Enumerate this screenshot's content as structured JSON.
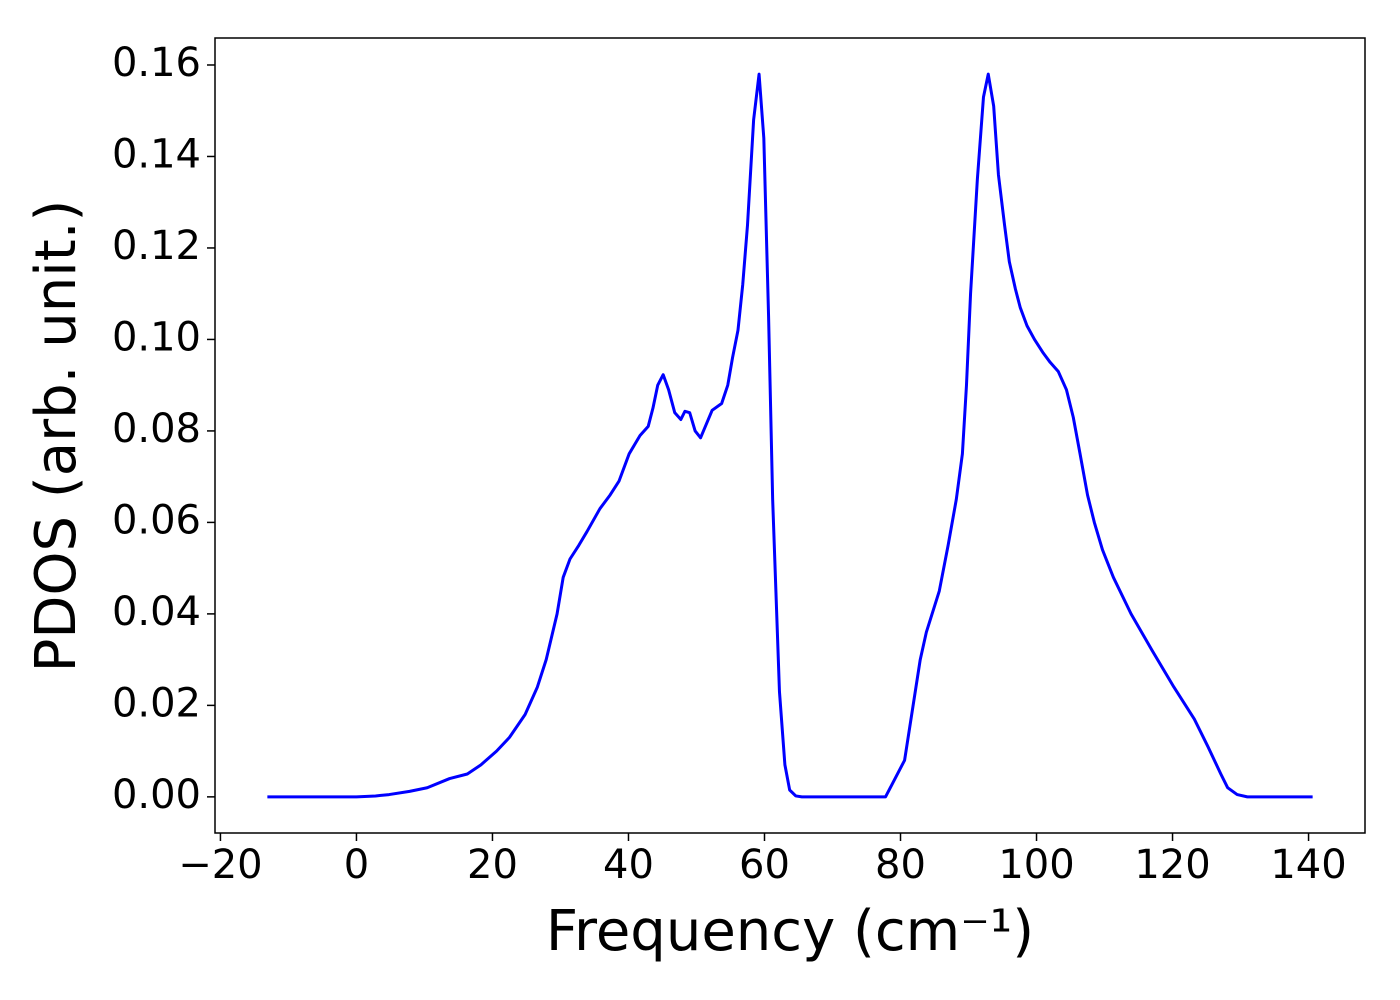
{
  "chart_data": {
    "type": "line",
    "xlabel": "Frequency (cm⁻¹)",
    "ylabel": "PDOS (arb. unit.)",
    "color": "#0000ff",
    "grid": false,
    "xlim": [
      -20.8,
      148.3
    ],
    "ylim": [
      -0.0079,
      0.1659
    ],
    "xticks": [
      {
        "value": -20,
        "label": "−20"
      },
      0,
      20,
      40,
      60,
      80,
      100,
      120,
      140
    ],
    "yticks": [
      {
        "value": 0,
        "label": "0.00"
      },
      {
        "value": 0.02,
        "label": "0.02"
      },
      {
        "value": 0.04,
        "label": "0.04"
      },
      {
        "value": 0.06,
        "label": "0.06"
      },
      {
        "value": 0.08,
        "label": "0.08"
      },
      {
        "value": 0.1,
        "label": "0.10"
      },
      {
        "value": 0.12,
        "label": "0.12"
      },
      {
        "value": 0.14,
        "label": "0.14"
      },
      {
        "value": 0.16,
        "label": "0.16"
      }
    ],
    "x": [
      -13.1,
      0,
      2.8,
      4.8,
      7.8,
      10.4,
      13.7,
      16.3,
      18.3,
      20.6,
      22.5,
      24.8,
      26.6,
      27.9,
      29.5,
      30.4,
      31.4,
      32.7,
      33.9,
      35.8,
      37.3,
      38.6,
      40.1,
      41.7,
      42.9,
      43.6,
      44.3,
      45.1,
      45.9,
      46.8,
      47.7,
      48.3,
      49,
      49.8,
      50.6,
      52.3,
      53.7,
      54.6,
      55.3,
      56.1,
      56.8,
      57.5,
      58.4,
      59.2,
      59.9,
      60.6,
      61.2,
      62.2,
      63,
      63.7,
      64.6,
      65.5,
      77.8,
      80.6,
      82.9,
      83.8,
      85.7,
      87,
      88.2,
      89.1,
      89.7,
      90.3,
      91.3,
      92.2,
      92.9,
      93.7,
      94.4,
      95.3,
      96,
      96.9,
      97.6,
      98.6,
      99.7,
      101,
      102,
      103.2,
      104.4,
      105.4,
      106.4,
      107.5,
      108.5,
      109.7,
      111.3,
      113.9,
      117,
      120.2,
      123.2,
      125.2,
      127.1,
      128.1,
      129.5,
      131,
      140.6
    ],
    "values": [
      0,
      0,
      0.0002,
      0.0005,
      0.0012,
      0.002,
      0.004,
      0.005,
      0.007,
      0.01,
      0.013,
      0.018,
      0.024,
      0.03,
      0.04,
      0.048,
      0.052,
      0.055,
      0.058,
      0.063,
      0.066,
      0.069,
      0.075,
      0.079,
      0.081,
      0.085,
      0.09,
      0.0923,
      0.089,
      0.084,
      0.0825,
      0.0843,
      0.084,
      0.08,
      0.0785,
      0.0845,
      0.086,
      0.09,
      0.096,
      0.102,
      0.112,
      0.125,
      0.148,
      0.158,
      0.144,
      0.105,
      0.065,
      0.023,
      0.007,
      0.0015,
      0.0002,
      0,
      0,
      0.008,
      0.03,
      0.036,
      0.045,
      0.055,
      0.065,
      0.075,
      0.09,
      0.11,
      0.135,
      0.153,
      0.158,
      0.151,
      0.136,
      0.125,
      0.117,
      0.111,
      0.107,
      0.103,
      0.1,
      0.097,
      0.095,
      0.093,
      0.089,
      0.083,
      0.075,
      0.066,
      0.06,
      0.054,
      0.048,
      0.04,
      0.032,
      0.024,
      0.017,
      0.011,
      0.005,
      0.002,
      0.0005,
      0,
      0
    ]
  }
}
